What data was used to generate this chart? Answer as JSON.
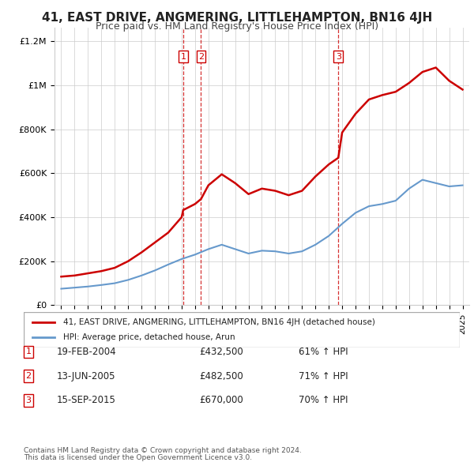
{
  "title": "41, EAST DRIVE, ANGMERING, LITTLEHAMPTON, BN16 4JH",
  "subtitle": "Price paid vs. HM Land Registry's House Price Index (HPI)",
  "legend_line1": "41, EAST DRIVE, ANGMERING, LITTLEHAMPTON, BN16 4JH (detached house)",
  "legend_line2": "HPI: Average price, detached house, Arun",
  "transactions": [
    {
      "num": 1,
      "date": "19-FEB-2004",
      "price": 432500,
      "pct": "61% ↑ HPI",
      "year": 2004.12
    },
    {
      "num": 2,
      "date": "13-JUN-2005",
      "price": 482500,
      "pct": "71% ↑ HPI",
      "year": 2005.45
    },
    {
      "num": 3,
      "date": "15-SEP-2015",
      "price": 670000,
      "pct": "70% ↑ HPI",
      "year": 2015.71
    }
  ],
  "footnote1": "Contains HM Land Registry data © Crown copyright and database right 2024.",
  "footnote2": "This data is licensed under the Open Government Licence v3.0.",
  "red_color": "#cc0000",
  "blue_color": "#6699cc",
  "hpi_years": [
    1995,
    1996,
    1997,
    1998,
    1999,
    2000,
    2001,
    2002,
    2003,
    2004,
    2005,
    2006,
    2007,
    2008,
    2009,
    2010,
    2011,
    2012,
    2013,
    2014,
    2015,
    2016,
    2017,
    2018,
    2019,
    2020,
    2021,
    2022,
    2023,
    2024,
    2025
  ],
  "hpi_values": [
    75000,
    80000,
    85000,
    92000,
    100000,
    115000,
    135000,
    158000,
    185000,
    210000,
    230000,
    255000,
    275000,
    255000,
    235000,
    248000,
    245000,
    235000,
    245000,
    275000,
    315000,
    370000,
    420000,
    450000,
    460000,
    475000,
    530000,
    570000,
    555000,
    540000,
    545000
  ],
  "red_years": [
    1995,
    1996,
    1997,
    1998,
    1999,
    2000,
    2001,
    2002,
    2003,
    2004,
    2004.12,
    2005,
    2005.45,
    2006,
    2007,
    2008,
    2009,
    2010,
    2011,
    2012,
    2013,
    2014,
    2015,
    2015.71,
    2016,
    2017,
    2018,
    2019,
    2020,
    2021,
    2022,
    2023,
    2024,
    2025
  ],
  "red_values": [
    130000,
    135000,
    145000,
    155000,
    170000,
    200000,
    240000,
    285000,
    330000,
    400000,
    432500,
    460000,
    482500,
    545000,
    595000,
    555000,
    505000,
    530000,
    520000,
    500000,
    520000,
    585000,
    640000,
    670000,
    785000,
    870000,
    935000,
    955000,
    970000,
    1010000,
    1060000,
    1080000,
    1020000,
    980000
  ]
}
